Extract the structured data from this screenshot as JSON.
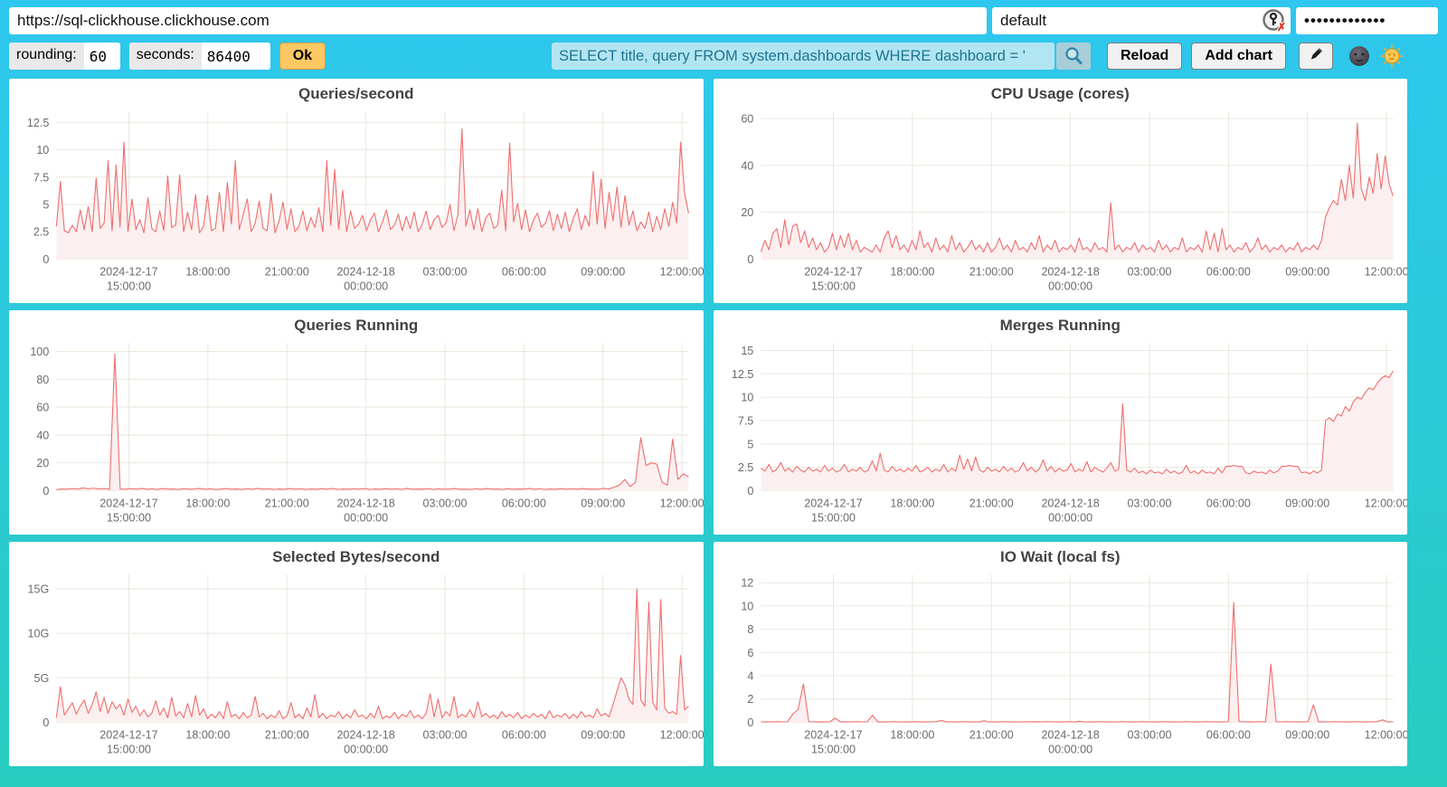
{
  "topbar": {
    "url_value": "https://sql-clickhouse.clickhouse.com",
    "user_value": "default",
    "password_value": "•••••••••••••",
    "user_auth_icon": "key-with-red-x"
  },
  "controls": {
    "rounding_label": "rounding:",
    "rounding_value": "60",
    "seconds_label": "seconds:",
    "seconds_value": "86400",
    "ok_label": "Ok",
    "search_value": "SELECT title, query FROM system.dashboards WHERE dashboard = '",
    "search_icon": "magnifier",
    "reload_label": "Reload",
    "add_chart_label": "Add chart",
    "edit_icon": "pencil",
    "dark_theme_icon": "moon-face",
    "light_theme_icon": "sun-face"
  },
  "colors": {
    "background_top": "#2ec7ef",
    "background_bottom": "#2accc0",
    "series_line": "#ef6f6f",
    "series_fill": "#fcefef",
    "grid": "#eae7de",
    "tick_text": "#6b6b6b",
    "ok_button": "#fcc864",
    "search_bg": "#b2e5f2",
    "search_text": "#1e7391"
  },
  "x_axis": {
    "ticks": [
      {
        "f": 0.1146,
        "lines": [
          "2024-12-17",
          "15:00:00"
        ]
      },
      {
        "f": 0.2396,
        "lines": [
          "18:00:00"
        ]
      },
      {
        "f": 0.3646,
        "lines": [
          "21:00:00"
        ]
      },
      {
        "f": 0.4896,
        "lines": [
          "2024-12-18",
          "00:00:00"
        ]
      },
      {
        "f": 0.6146,
        "lines": [
          "03:00:00"
        ]
      },
      {
        "f": 0.7396,
        "lines": [
          "06:00:00"
        ]
      },
      {
        "f": 0.8646,
        "lines": [
          "09:00:00"
        ]
      },
      {
        "f": 0.9896,
        "lines": [
          "12:00:00"
        ]
      }
    ]
  },
  "chart_data": [
    {
      "type": "line",
      "title": "Queries/second",
      "ymax": 13.5,
      "yticks": [
        [
          0,
          "0"
        ],
        [
          2.5,
          "2.5"
        ],
        [
          5,
          "5"
        ],
        [
          7.5,
          "7.5"
        ],
        [
          10,
          "10"
        ],
        [
          12.5,
          "12.5"
        ]
      ],
      "values": [
        3,
        7.1,
        2.6,
        2.4,
        3.1,
        2.5,
        4.5,
        2.7,
        4.8,
        2.5,
        7.4,
        2.8,
        3.3,
        9,
        2.6,
        8.6,
        2.9,
        10.7,
        2.5,
        5.5,
        2.7,
        3.6,
        2.4,
        5.6,
        2.8,
        2.5,
        4.4,
        2.6,
        7.6,
        2.9,
        3.1,
        7.7,
        2.5,
        4.3,
        2.7,
        5.9,
        2.4,
        3,
        5.8,
        2.6,
        2.8,
        6.1,
        2.5,
        7,
        3.2,
        9,
        2.7,
        4.1,
        5.5,
        2.5,
        3.3,
        5.3,
        2.8,
        2.6,
        6,
        2.4,
        3.5,
        5.2,
        2.7,
        4.6,
        2.5,
        3,
        4.4,
        2.6,
        3.8,
        2.9,
        4.7,
        2.5,
        9,
        3.1,
        8.2,
        2.7,
        6.3,
        2.5,
        4.4,
        2.8,
        3.2,
        4,
        2.6,
        3.6,
        4.2,
        2.5,
        3.4,
        4.5,
        2.7,
        3.1,
        4.1,
        2.6,
        3.9,
        2.8,
        4.3,
        2.5,
        3.2,
        4.4,
        2.7,
        3.6,
        4,
        2.9,
        3.3,
        5,
        2.6,
        4.1,
        11.9,
        3,
        4.5,
        2.7,
        4.6,
        2.5,
        3.8,
        4.2,
        2.8,
        3.1,
        6.3,
        2.6,
        10.6,
        3.4,
        5.1,
        2.7,
        4.5,
        2.5,
        3.6,
        4.2,
        2.9,
        3.3,
        4.4,
        2.6,
        4.1,
        2.8,
        4.3,
        2.5,
        3.7,
        4.6,
        2.7,
        4,
        3,
        8,
        3.2,
        7.3,
        2.8,
        6.1,
        3.5,
        6.6,
        2.9,
        5.8,
        3.1,
        4.4,
        2.6,
        3.4,
        2.8,
        4.3,
        2.5,
        3.9,
        2.7,
        4.6,
        3,
        5.2,
        3.3,
        10.7,
        6,
        4.2
      ]
    },
    {
      "type": "line",
      "title": "CPU Usage (cores)",
      "ymax": 63,
      "yticks": [
        [
          0,
          "0"
        ],
        [
          20,
          "20"
        ],
        [
          40,
          "40"
        ],
        [
          60,
          "60"
        ]
      ],
      "values": [
        3,
        8,
        4,
        11,
        13,
        5,
        16.8,
        6,
        14,
        15,
        7,
        12,
        5,
        9,
        4,
        7,
        3,
        5,
        11,
        4,
        10,
        5,
        11,
        4,
        8,
        3,
        5,
        4,
        3,
        6,
        3,
        9,
        12,
        5,
        10,
        4,
        6,
        3,
        8,
        4,
        12,
        5,
        7,
        3,
        9,
        4,
        6,
        3,
        10,
        4,
        7,
        3,
        5,
        8,
        4,
        6,
        3,
        7,
        3,
        5,
        9,
        4,
        6,
        3,
        8,
        4,
        5,
        3,
        7,
        4,
        10,
        3,
        6,
        4,
        8,
        3,
        5,
        4,
        6,
        3,
        9,
        4,
        5,
        3,
        7,
        4,
        5,
        3,
        24,
        4,
        6,
        3,
        5,
        4,
        7,
        3,
        6,
        4,
        5,
        3,
        8,
        4,
        6,
        3,
        5,
        4,
        9,
        3,
        5,
        4,
        6,
        3,
        12,
        4,
        11,
        3,
        13,
        4,
        6,
        3,
        5,
        4,
        7,
        3,
        5,
        9,
        4,
        6,
        3,
        5,
        4,
        6,
        3,
        5,
        4,
        7,
        3,
        5,
        4,
        6,
        4,
        8,
        18,
        22,
        25,
        23,
        34,
        25,
        40,
        26,
        58,
        30,
        25,
        35,
        28,
        45,
        30,
        44,
        32,
        27
      ]
    },
    {
      "type": "line",
      "title": "Queries Running",
      "ymax": 106,
      "yticks": [
        [
          0,
          "0"
        ],
        [
          20,
          "20"
        ],
        [
          40,
          "40"
        ],
        [
          60,
          "60"
        ],
        [
          80,
          "80"
        ],
        [
          100,
          "100"
        ]
      ],
      "values": [
        0.8,
        1.2,
        1,
        1.5,
        1.1,
        2,
        1.3,
        1.8,
        1.2,
        1.5,
        1,
        98,
        1.2,
        1,
        1.4,
        1.1,
        1.6,
        1,
        1.3,
        0.9,
        1.5,
        1.1,
        1.2,
        0.9,
        1.4,
        1,
        1.2,
        1.6,
        1,
        1.3,
        0.9,
        1.1,
        1.5,
        1,
        1.2,
        0.9,
        1.4,
        1,
        1.6,
        1.1,
        1.3,
        0.9,
        1.2,
        1,
        1.5,
        1.1,
        1.3,
        0.9,
        1.2,
        1,
        1.4,
        1.1,
        1.6,
        0.9,
        1.2,
        1,
        1.3,
        1.1,
        1.5,
        0.9,
        1.2,
        1,
        1.4,
        1.1,
        1.3,
        0.9,
        1.6,
        1,
        1.2,
        1.1,
        1.4,
        0.9,
        1.3,
        1,
        1.2,
        1.5,
        1,
        1.1,
        0.9,
        1.3,
        1,
        1.5,
        1.1,
        1.2,
        0.9,
        1.4,
        1,
        1.2,
        1.1,
        1.6,
        1,
        1.3,
        0.9,
        1.2,
        1,
        1.4,
        1.1,
        1.3,
        1,
        1.5,
        1.1,
        1.2,
        1,
        1.6,
        1.2,
        2.5,
        4,
        8,
        3,
        6,
        38,
        18,
        20,
        19,
        6,
        4,
        37,
        8,
        12,
        10
      ]
    },
    {
      "type": "line",
      "title": "Merges Running",
      "ymax": 15.8,
      "yticks": [
        [
          0,
          "0"
        ],
        [
          2.5,
          "2.5"
        ],
        [
          5,
          "5"
        ],
        [
          7.5,
          "7.5"
        ],
        [
          10,
          "10"
        ],
        [
          12.5,
          "12.5"
        ],
        [
          15,
          "15"
        ]
      ],
      "values": [
        2.4,
        2.1,
        2.8,
        2,
        2.3,
        3,
        2.1,
        2.4,
        2,
        2.6,
        2.2,
        2,
        2.5,
        2.1,
        2.3,
        2,
        2.7,
        2.1,
        2.4,
        2,
        2.2,
        2.8,
        2,
        2.3,
        2.1,
        2.5,
        2,
        2.2,
        3.2,
        2.1,
        4,
        2.2,
        2,
        2.6,
        2.1,
        2.3,
        2,
        2.4,
        2.1,
        2.7,
        2,
        2.2,
        2.5,
        2,
        2.3,
        2.1,
        2.8,
        2,
        2.4,
        2.1,
        3.8,
        2.3,
        3.4,
        2.1,
        3.6,
        2.2,
        2,
        2.5,
        2.1,
        2.3,
        2,
        2.6,
        2.1,
        2.4,
        2,
        2.2,
        3,
        2.1,
        2.5,
        2,
        2.3,
        3.3,
        2.1,
        2.6,
        2,
        2.4,
        2.1,
        2.2,
        2.9,
        2,
        2.3,
        2.1,
        3.1,
        2,
        2.5,
        2.2,
        2,
        2.4,
        3,
        2.1,
        2.3,
        9.3,
        2.2,
        2,
        2.4,
        1.9,
        2.1,
        1.8,
        2.2,
        1.9,
        2,
        1.8,
        2.3,
        1.9,
        2.1,
        1.8,
        2,
        2.7,
        1.9,
        2.1,
        1.8,
        2.2,
        1.9,
        2,
        1.8,
        2.4,
        1.9,
        2.6,
        2.6,
        2.7,
        2.6,
        2.6,
        1.9,
        1.8,
        2.1,
        1.9,
        2,
        1.8,
        2.2,
        1.9,
        2.1,
        2.6,
        2.6,
        2.7,
        2.6,
        2.6,
        1.9,
        2,
        1.8,
        2.1,
        1.9,
        2.2,
        7.5,
        7.8,
        7.4,
        8.2,
        8,
        9,
        8.5,
        9.5,
        10,
        9.8,
        10.5,
        11,
        10.8,
        11.5,
        12,
        12.3,
        12.1,
        12.8
      ]
    },
    {
      "type": "line",
      "title": "Selected Bytes/second",
      "ymax": 16.6,
      "yticks": [
        [
          0,
          "0"
        ],
        [
          5,
          "5G"
        ],
        [
          10,
          "10G"
        ],
        [
          15,
          "15G"
        ]
      ],
      "values": [
        0.5,
        4,
        0.8,
        1.5,
        2.2,
        0.9,
        1.8,
        2.5,
        1,
        2,
        3.4,
        1.2,
        2.8,
        1,
        2.3,
        1.5,
        2,
        0.8,
        2.6,
        1.1,
        1.8,
        0.7,
        1.4,
        0.6,
        1,
        2.4,
        0.8,
        1.6,
        0.5,
        2.8,
        0.7,
        1.2,
        0.5,
        2.1,
        0.6,
        3,
        0.8,
        1.5,
        0.4,
        0.9,
        0.5,
        1.2,
        0.4,
        2.3,
        0.6,
        0.9,
        0.4,
        1.1,
        0.5,
        0.8,
        2.9,
        0.6,
        1,
        0.4,
        0.8,
        0.5,
        1.3,
        0.4,
        0.7,
        2.2,
        0.5,
        0.9,
        0.4,
        1.6,
        0.6,
        3.1,
        0.5,
        1,
        0.4,
        0.8,
        0.6,
        1.2,
        0.4,
        0.9,
        0.5,
        1.4,
        0.6,
        0.8,
        0.4,
        1,
        0.5,
        1.8,
        0.4,
        0.7,
        0.5,
        1.1,
        0.4,
        0.9,
        0.6,
        1.3,
        0.5,
        0.8,
        0.4,
        1,
        3.2,
        0.6,
        2.6,
        0.5,
        1.2,
        0.7,
        2.9,
        0.5,
        0.9,
        0.6,
        1.4,
        0.5,
        2.3,
        0.6,
        1,
        0.5,
        0.8,
        0.4,
        1.2,
        0.6,
        0.9,
        0.5,
        1.1,
        0.4,
        0.8,
        0.5,
        1,
        0.6,
        0.9,
        0.4,
        1.3,
        0.5,
        0.8,
        0.6,
        1,
        0.4,
        0.9,
        0.5,
        1.2,
        0.6,
        0.8,
        0.5,
        1.5,
        0.7,
        1,
        0.6,
        2,
        3.5,
        5,
        4.2,
        2.6,
        2,
        15,
        2.5,
        1.8,
        13.5,
        2.2,
        1.4,
        13.8,
        1.6,
        1,
        1.2,
        0.9,
        7.5,
        1.4,
        1.8
      ]
    },
    {
      "type": "line",
      "title": "IO Wait (local fs)",
      "ymax": 12.7,
      "yticks": [
        [
          0,
          "0"
        ],
        [
          2,
          "2"
        ],
        [
          4,
          "4"
        ],
        [
          6,
          "6"
        ],
        [
          8,
          "8"
        ],
        [
          10,
          "10"
        ],
        [
          12,
          "12"
        ]
      ],
      "values": [
        0.02,
        0.04,
        0.03,
        0.05,
        0.03,
        0.04,
        0.7,
        1.1,
        3.3,
        0.05,
        0.03,
        0.04,
        0.03,
        0.05,
        0.35,
        0.03,
        0.04,
        0.03,
        0.05,
        0.03,
        0.04,
        0.6,
        0.03,
        0.04,
        0.03,
        0.05,
        0.03,
        0.04,
        0.03,
        0.05,
        0.03,
        0.04,
        0.03,
        0.05,
        0.15,
        0.03,
        0.04,
        0.03,
        0.05,
        0.03,
        0.04,
        0.03,
        0.12,
        0.03,
        0.04,
        0.03,
        0.05,
        0.03,
        0.04,
        0.03,
        0.05,
        0.03,
        0.04,
        0.03,
        0.05,
        0.03,
        0.04,
        0.03,
        0.05,
        0.03,
        0.08,
        0.03,
        0.04,
        0.03,
        0.05,
        0.03,
        0.04,
        0.03,
        0.05,
        0.03,
        0.04,
        0.03,
        0.05,
        0.03,
        0.04,
        0.03,
        0.05,
        0.03,
        0.04,
        0.03,
        0.05,
        0.03,
        0.04,
        0.03,
        0.05,
        0.03,
        0.04,
        0.03,
        0.05,
        10.3,
        0.06,
        0.03,
        0.04,
        0.03,
        0.05,
        0.03,
        5,
        0.04,
        0.03,
        0.05,
        0.03,
        0.04,
        0.03,
        0.05,
        1.5,
        0.03,
        0.04,
        0.03,
        0.05,
        0.03,
        0.04,
        0.03,
        0.05,
        0.03,
        0.04,
        0.03,
        0.05,
        0.2,
        0.03,
        0.04
      ]
    }
  ]
}
